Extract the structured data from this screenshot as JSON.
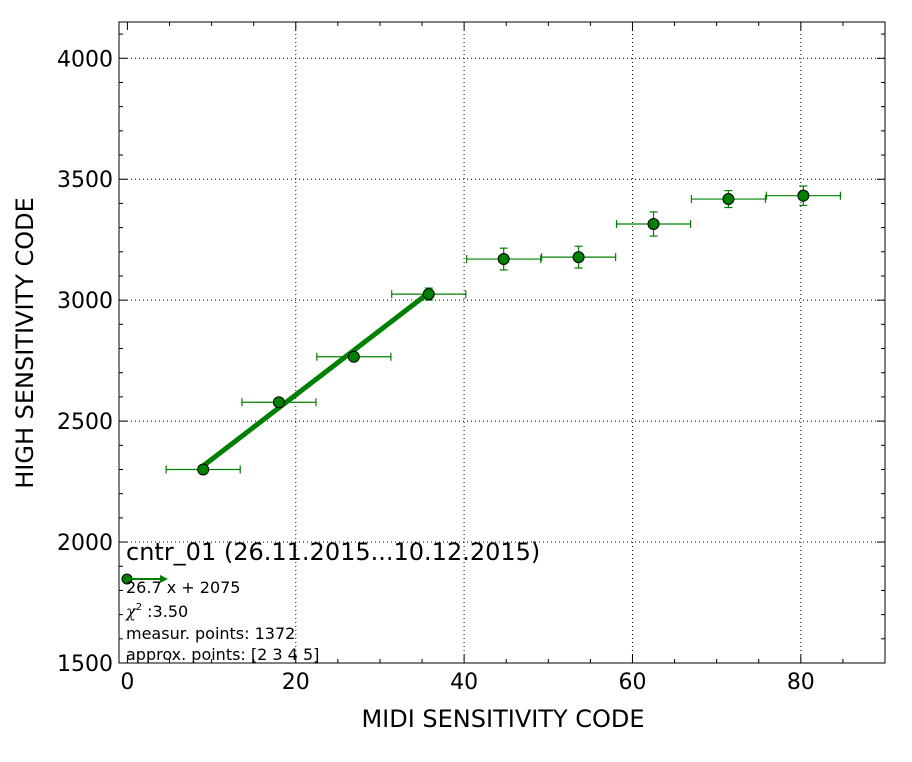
{
  "chart_data": {
    "type": "scatter",
    "title": "cntr_01 (26.11.2015...10.12.2015)",
    "xlabel": "MIDI SENSITIVITY CODE",
    "ylabel": "HIGH SENSITIVITY CODE",
    "xlim": [
      -1,
      90
    ],
    "ylim": [
      1500,
      4150
    ],
    "xticks": [
      0,
      20,
      40,
      60,
      80
    ],
    "xtick_labels": [
      "0",
      "20",
      "40",
      "60",
      "80"
    ],
    "yticks": [
      1500,
      2000,
      2500,
      3000,
      3500,
      4000
    ],
    "ytick_labels": [
      "1500",
      "2000",
      "2500",
      "3000",
      "3500",
      "4000"
    ],
    "grid": true,
    "colors": {
      "series": "#008000",
      "marker_edge": "#000000"
    },
    "series": [
      {
        "type": "errorbar",
        "x": [
          9,
          18,
          26.9,
          35.8,
          44.7,
          53.6,
          62.5,
          71.4,
          80.3
        ],
        "y": [
          2300,
          2578,
          2766,
          3025,
          3170,
          3178,
          3315,
          3418,
          3432
        ],
        "xerr": [
          4.4,
          4.4,
          4.4,
          4.4,
          4.4,
          4.4,
          4.4,
          4.4,
          4.4
        ],
        "yerr": [
          12,
          15,
          15,
          25,
          45,
          45,
          50,
          35,
          40
        ]
      },
      {
        "type": "line",
        "x": [
          9,
          35.8
        ],
        "y": [
          2315,
          3030
        ]
      }
    ],
    "annotations": {
      "fit": "26.7 x + 2075",
      "chi2_symbol": "χ",
      "chi2_power": "2",
      "chi2_value": " :3.50",
      "measur_points": "measur. points: 1372",
      "approx_points": "approx. points: [2 3 4 5]"
    }
  }
}
